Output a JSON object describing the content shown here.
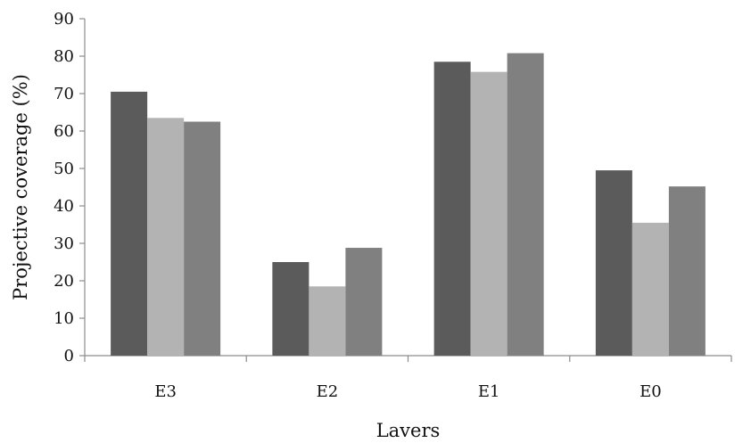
{
  "chart_data": {
    "type": "bar",
    "categories": [
      "E3",
      "E2",
      "E1",
      "E0"
    ],
    "series": [
      {
        "values": [
          70.5,
          25,
          78.5,
          49.5
        ],
        "color": "#5b5b5b"
      },
      {
        "values": [
          63.5,
          18.5,
          75.8,
          35.5
        ],
        "color": "#b3b3b3"
      },
      {
        "values": [
          62.5,
          28.8,
          80.8,
          45.2
        ],
        "color": "#808080"
      }
    ],
    "title": "",
    "xlabel": "Lavers",
    "ylabel": "Projective coverage (%)",
    "ylim": [
      0,
      90
    ],
    "yticks": [
      0,
      10,
      20,
      30,
      40,
      50,
      60,
      70,
      80,
      90
    ],
    "grid": false,
    "legend": false
  }
}
